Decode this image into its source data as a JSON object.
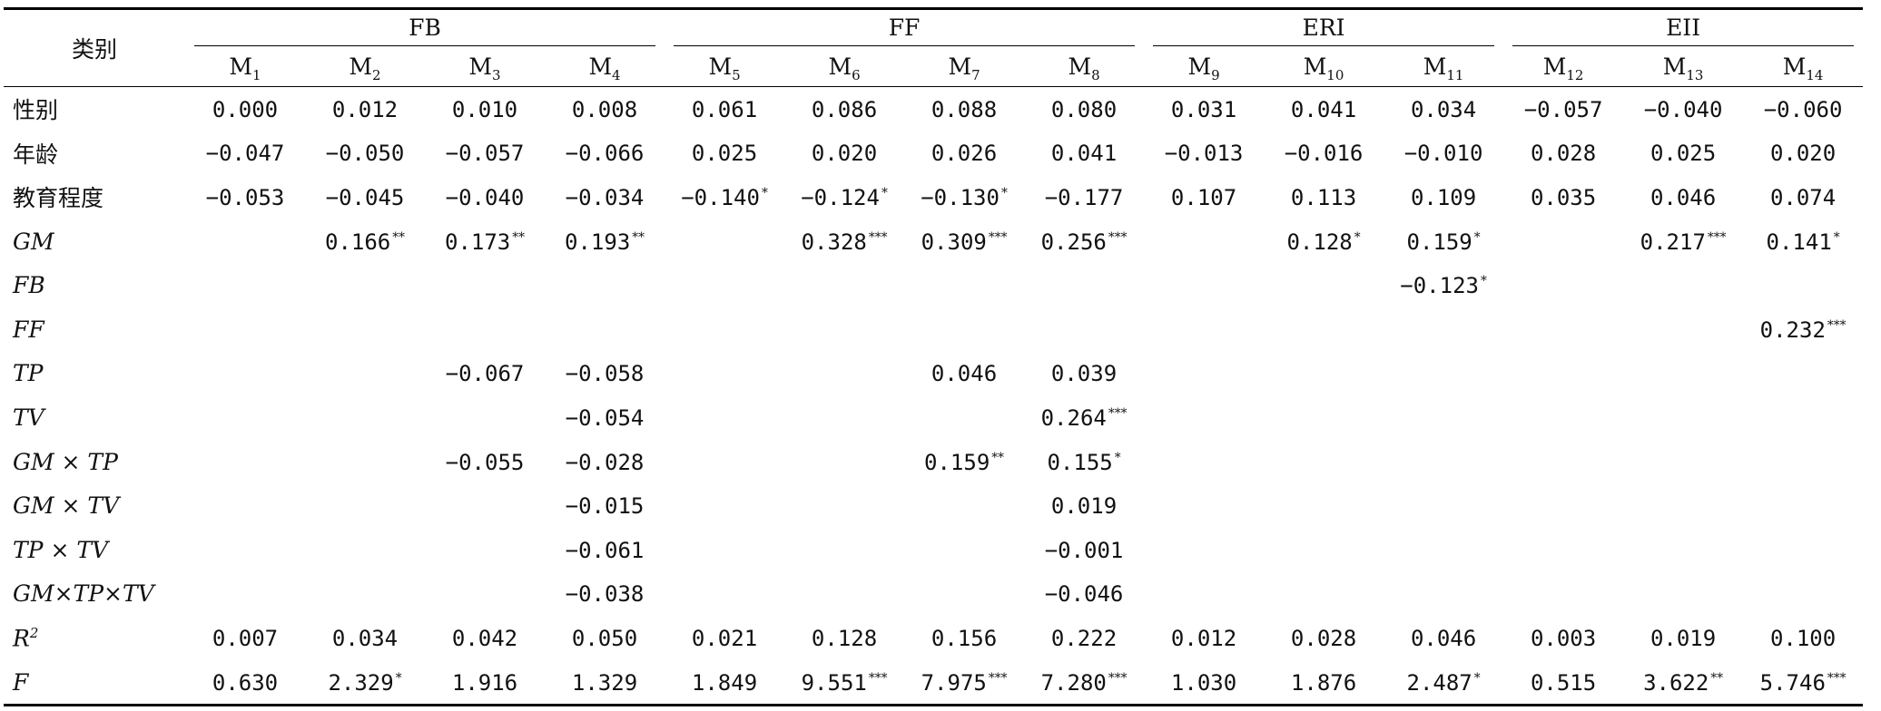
{
  "header": {
    "corner": "类别",
    "groups": [
      {
        "label": "FB",
        "span": 4
      },
      {
        "label": "FF",
        "span": 4
      },
      {
        "label": "ERI",
        "span": 3
      },
      {
        "label": "EII",
        "span": 3
      }
    ],
    "models": [
      {
        "base": "M",
        "sub": "1"
      },
      {
        "base": "M",
        "sub": "2"
      },
      {
        "base": "M",
        "sub": "3"
      },
      {
        "base": "M",
        "sub": "4"
      },
      {
        "base": "M",
        "sub": "5"
      },
      {
        "base": "M",
        "sub": "6"
      },
      {
        "base": "M",
        "sub": "7"
      },
      {
        "base": "M",
        "sub": "8"
      },
      {
        "base": "M",
        "sub": "9"
      },
      {
        "base": "M",
        "sub": "10"
      },
      {
        "base": "M",
        "sub": "11"
      },
      {
        "base": "M",
        "sub": "12"
      },
      {
        "base": "M",
        "sub": "13"
      },
      {
        "base": "M",
        "sub": "14"
      }
    ]
  },
  "rows": [
    {
      "label": "性别",
      "italic": false,
      "cells": [
        [
          "0.000",
          ""
        ],
        [
          "0.012",
          ""
        ],
        [
          "0.010",
          ""
        ],
        [
          "0.008",
          ""
        ],
        [
          "0.061",
          ""
        ],
        [
          "0.086",
          ""
        ],
        [
          "0.088",
          ""
        ],
        [
          "0.080",
          ""
        ],
        [
          "0.031",
          ""
        ],
        [
          "0.041",
          ""
        ],
        [
          "0.034",
          ""
        ],
        [
          "−0.057",
          ""
        ],
        [
          "−0.040",
          ""
        ],
        [
          "−0.060",
          ""
        ]
      ]
    },
    {
      "label": "年龄",
      "italic": false,
      "cells": [
        [
          "−0.047",
          ""
        ],
        [
          "−0.050",
          ""
        ],
        [
          "−0.057",
          ""
        ],
        [
          "−0.066",
          ""
        ],
        [
          "0.025",
          ""
        ],
        [
          "0.020",
          ""
        ],
        [
          "0.026",
          ""
        ],
        [
          "0.041",
          ""
        ],
        [
          "−0.013",
          ""
        ],
        [
          "−0.016",
          ""
        ],
        [
          "−0.010",
          ""
        ],
        [
          "0.028",
          ""
        ],
        [
          "0.025",
          ""
        ],
        [
          "0.020",
          ""
        ]
      ]
    },
    {
      "label": "教育程度",
      "italic": false,
      "cells": [
        [
          "−0.053",
          ""
        ],
        [
          "−0.045",
          ""
        ],
        [
          "−0.040",
          ""
        ],
        [
          "−0.034",
          ""
        ],
        [
          "−0.140",
          "*"
        ],
        [
          "−0.124",
          "*"
        ],
        [
          "−0.130",
          "*"
        ],
        [
          "−0.177",
          ""
        ],
        [
          "0.107",
          ""
        ],
        [
          "0.113",
          ""
        ],
        [
          "0.109",
          ""
        ],
        [
          "0.035",
          ""
        ],
        [
          "0.046",
          ""
        ],
        [
          "0.074",
          ""
        ]
      ]
    },
    {
      "label": "GM",
      "italic": true,
      "cells": [
        [
          "",
          ""
        ],
        [
          "0.166",
          "**"
        ],
        [
          "0.173",
          "**"
        ],
        [
          "0.193",
          "**"
        ],
        [
          "",
          ""
        ],
        [
          "0.328",
          "***"
        ],
        [
          "0.309",
          "***"
        ],
        [
          "0.256",
          "***"
        ],
        [
          "",
          ""
        ],
        [
          "0.128",
          "*"
        ],
        [
          "0.159",
          "*"
        ],
        [
          "",
          ""
        ],
        [
          "0.217",
          "***"
        ],
        [
          "0.141",
          "*"
        ]
      ]
    },
    {
      "label": "FB",
      "italic": true,
      "cells": [
        [
          "",
          ""
        ],
        [
          "",
          ""
        ],
        [
          "",
          ""
        ],
        [
          "",
          ""
        ],
        [
          "",
          ""
        ],
        [
          "",
          ""
        ],
        [
          "",
          ""
        ],
        [
          "",
          ""
        ],
        [
          "",
          ""
        ],
        [
          "",
          ""
        ],
        [
          "−0.123",
          "*"
        ],
        [
          "",
          ""
        ],
        [
          "",
          ""
        ],
        [
          "",
          ""
        ]
      ]
    },
    {
      "label": "FF",
      "italic": true,
      "cells": [
        [
          "",
          ""
        ],
        [
          "",
          ""
        ],
        [
          "",
          ""
        ],
        [
          "",
          ""
        ],
        [
          "",
          ""
        ],
        [
          "",
          ""
        ],
        [
          "",
          ""
        ],
        [
          "",
          ""
        ],
        [
          "",
          ""
        ],
        [
          "",
          ""
        ],
        [
          "",
          ""
        ],
        [
          "",
          ""
        ],
        [
          "",
          ""
        ],
        [
          "0.232",
          "***"
        ]
      ]
    },
    {
      "label": "TP",
      "italic": true,
      "cells": [
        [
          "",
          ""
        ],
        [
          "",
          ""
        ],
        [
          "−0.067",
          ""
        ],
        [
          "−0.058",
          ""
        ],
        [
          "",
          ""
        ],
        [
          "",
          ""
        ],
        [
          "0.046",
          ""
        ],
        [
          "0.039",
          ""
        ],
        [
          "",
          ""
        ],
        [
          "",
          ""
        ],
        [
          "",
          ""
        ],
        [
          "",
          ""
        ],
        [
          "",
          ""
        ],
        [
          "",
          ""
        ]
      ]
    },
    {
      "label": "TV",
      "italic": true,
      "cells": [
        [
          "",
          ""
        ],
        [
          "",
          ""
        ],
        [
          "",
          ""
        ],
        [
          "−0.054",
          ""
        ],
        [
          "",
          ""
        ],
        [
          "",
          ""
        ],
        [
          "",
          ""
        ],
        [
          "0.264",
          "***"
        ],
        [
          "",
          ""
        ],
        [
          "",
          ""
        ],
        [
          "",
          ""
        ],
        [
          "",
          ""
        ],
        [
          "",
          ""
        ],
        [
          "",
          ""
        ]
      ]
    },
    {
      "label": "GM × TP",
      "italic": true,
      "cells": [
        [
          "",
          ""
        ],
        [
          "",
          ""
        ],
        [
          "−0.055",
          ""
        ],
        [
          "−0.028",
          ""
        ],
        [
          "",
          ""
        ],
        [
          "",
          ""
        ],
        [
          "0.159",
          "**"
        ],
        [
          "0.155",
          "*"
        ],
        [
          "",
          ""
        ],
        [
          "",
          ""
        ],
        [
          "",
          ""
        ],
        [
          "",
          ""
        ],
        [
          "",
          ""
        ],
        [
          "",
          ""
        ]
      ]
    },
    {
      "label": "GM × TV",
      "italic": true,
      "cells": [
        [
          "",
          ""
        ],
        [
          "",
          ""
        ],
        [
          "",
          ""
        ],
        [
          "−0.015",
          ""
        ],
        [
          "",
          ""
        ],
        [
          "",
          ""
        ],
        [
          "",
          ""
        ],
        [
          "0.019",
          ""
        ],
        [
          "",
          ""
        ],
        [
          "",
          ""
        ],
        [
          "",
          ""
        ],
        [
          "",
          ""
        ],
        [
          "",
          ""
        ],
        [
          "",
          ""
        ]
      ]
    },
    {
      "label": "TP × TV",
      "italic": true,
      "cells": [
        [
          "",
          ""
        ],
        [
          "",
          ""
        ],
        [
          "",
          ""
        ],
        [
          "−0.061",
          ""
        ],
        [
          "",
          ""
        ],
        [
          "",
          ""
        ],
        [
          "",
          ""
        ],
        [
          "−0.001",
          ""
        ],
        [
          "",
          ""
        ],
        [
          "",
          ""
        ],
        [
          "",
          ""
        ],
        [
          "",
          ""
        ],
        [
          "",
          ""
        ],
        [
          "",
          ""
        ]
      ]
    },
    {
      "label": "GM×TP×TV",
      "italic": true,
      "cells": [
        [
          "",
          ""
        ],
        [
          "",
          ""
        ],
        [
          "",
          ""
        ],
        [
          "−0.038",
          ""
        ],
        [
          "",
          ""
        ],
        [
          "",
          ""
        ],
        [
          "",
          ""
        ],
        [
          "−0.046",
          ""
        ],
        [
          "",
          ""
        ],
        [
          "",
          ""
        ],
        [
          "",
          ""
        ],
        [
          "",
          ""
        ],
        [
          "",
          ""
        ],
        [
          "",
          ""
        ]
      ]
    },
    {
      "label": "R",
      "label_sup": "2",
      "italic": true,
      "cells": [
        [
          "0.007",
          ""
        ],
        [
          "0.034",
          ""
        ],
        [
          "0.042",
          ""
        ],
        [
          "0.050",
          ""
        ],
        [
          "0.021",
          ""
        ],
        [
          "0.128",
          ""
        ],
        [
          "0.156",
          ""
        ],
        [
          "0.222",
          ""
        ],
        [
          "0.012",
          ""
        ],
        [
          "0.028",
          ""
        ],
        [
          "0.046",
          ""
        ],
        [
          "0.003",
          ""
        ],
        [
          "0.019",
          ""
        ],
        [
          "0.100",
          ""
        ]
      ]
    },
    {
      "label": "F",
      "italic": true,
      "cells": [
        [
          "0.630",
          ""
        ],
        [
          "2.329",
          "*"
        ],
        [
          "1.916",
          ""
        ],
        [
          "1.329",
          ""
        ],
        [
          "1.849",
          ""
        ],
        [
          "9.551",
          "***"
        ],
        [
          "7.975",
          "***"
        ],
        [
          "7.280",
          "***"
        ],
        [
          "1.030",
          ""
        ],
        [
          "1.876",
          ""
        ],
        [
          "2.487",
          "*"
        ],
        [
          "0.515",
          ""
        ],
        [
          "3.622",
          "**"
        ],
        [
          "5.746",
          "***"
        ]
      ]
    }
  ]
}
